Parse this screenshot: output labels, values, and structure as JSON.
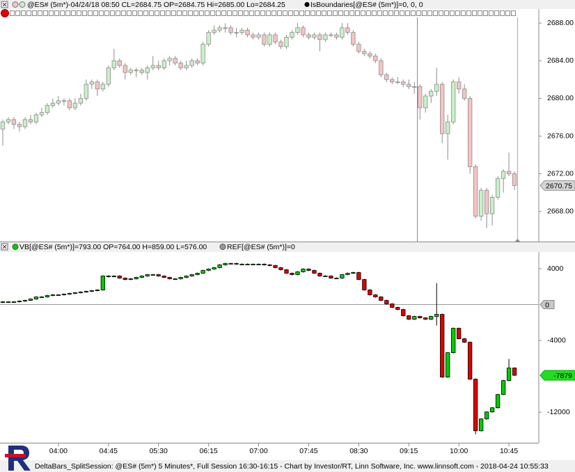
{
  "chart_data": [
    {
      "type": "candlestick",
      "header": "@ES# (5m*)-04/24/18 08:50 CL=2684.75 OP=2684.75 Hi=2685.00 Lo=2684.25",
      "indicator": "IsBoundaries[@ES# (5m*)]=0, 0, 0",
      "up_color": "#c8f0c8",
      "down_color": "#f4c4c4",
      "outline_color": "#8c8c8c",
      "ylim": [
        2664.8,
        2688.6
      ],
      "yticks": [
        {
          "value": 2668,
          "label": "2668.00"
        },
        {
          "value": 2672,
          "label": "2672.00"
        },
        {
          "value": 2676,
          "label": "2676.00"
        },
        {
          "value": 2680,
          "label": "2680.00"
        },
        {
          "value": 2684,
          "label": "2684.00"
        },
        {
          "value": 2688,
          "label": "2688.00"
        }
      ],
      "last_value": 2670.75,
      "open": [
        2676.75,
        2677.5,
        2677.75,
        2677.25,
        2677.0,
        2677.75,
        2677.5,
        2678.25,
        2678.5,
        2679.25,
        2679.5,
        2679.75,
        2679.75,
        2679.0,
        2679.5,
        2680.0,
        2681.5,
        2681.75,
        2681.0,
        2681.5,
        2683.25,
        2684.0,
        2683.5,
        2682.75,
        2683.0,
        2683.0,
        2682.75,
        2683.25,
        2683.5,
        2683.25,
        2684.0,
        2684.25,
        2683.75,
        2683.25,
        2683.5,
        2684.0,
        2683.75,
        2685.75,
        2687.0,
        2687.25,
        2687.5,
        2687.5,
        2687.0,
        2687.0,
        2687.25,
        2686.75,
        2686.5,
        2686.75,
        2685.75,
        2686.75,
        2686.0,
        2685.5,
        2686.5,
        2687.0,
        2687.5,
        2686.75,
        2686.5,
        2686.75,
        2686.25,
        2686.75,
        2686.75,
        2686.5,
        2687.5,
        2687.0,
        2685.75,
        2685.0,
        2684.75,
        2684.5,
        2684.0,
        2682.5,
        2682.0,
        2681.75,
        2681.75,
        2681.5,
        2681.25,
        2681.25,
        2679.0,
        2680.25,
        2680.75,
        2681.5,
        2676.25,
        2677.5,
        2681.75,
        2681.0,
        2680.0,
        2672.75,
        2667.5,
        2670.25,
        2667.75,
        2669.5,
        2671.5,
        2672.25,
        2672.0
      ],
      "high": [
        2677.75,
        2678.0,
        2678.0,
        2677.5,
        2678.0,
        2678.25,
        2678.5,
        2679.0,
        2679.5,
        2680.0,
        2680.25,
        2680.0,
        2680.0,
        2680.0,
        2680.5,
        2682.0,
        2682.0,
        2682.0,
        2681.75,
        2683.5,
        2685.25,
        2684.25,
        2683.75,
        2683.25,
        2683.25,
        2683.25,
        2683.5,
        2684.5,
        2684.0,
        2684.25,
        2684.5,
        2684.5,
        2684.0,
        2684.0,
        2684.25,
        2684.25,
        2686.0,
        2687.25,
        2687.75,
        2687.75,
        2688.0,
        2687.75,
        2687.5,
        2687.5,
        2687.5,
        2687.0,
        2687.0,
        2687.0,
        2687.0,
        2687.0,
        2686.25,
        2686.75,
        2687.25,
        2688.0,
        2687.75,
        2687.0,
        2687.0,
        2687.0,
        2687.0,
        2687.0,
        2687.0,
        2688.0,
        2688.0,
        2687.25,
        2686.0,
        2685.25,
        2685.0,
        2684.75,
        2684.25,
        2682.75,
        2682.25,
        2682.25,
        2682.0,
        2682.0,
        2681.75,
        2681.5,
        2680.5,
        2681.0,
        2683.25,
        2681.75,
        2678.25,
        2682.0,
        2682.25,
        2681.5,
        2680.25,
        2673.0,
        2670.5,
        2670.5,
        2669.75,
        2671.75,
        2672.5,
        2674.25,
        2672.25
      ],
      "low": [
        2675.0,
        2677.25,
        2676.75,
        2676.5,
        2676.75,
        2677.25,
        2677.25,
        2678.0,
        2678.25,
        2679.0,
        2679.25,
        2679.25,
        2678.75,
        2678.75,
        2679.25,
        2679.75,
        2681.0,
        2680.25,
        2680.75,
        2681.25,
        2683.0,
        2683.25,
        2682.0,
        2682.5,
        2682.25,
        2682.5,
        2682.0,
        2683.0,
        2683.0,
        2683.0,
        2683.5,
        2683.5,
        2683.0,
        2683.0,
        2683.25,
        2683.5,
        2683.5,
        2685.5,
        2686.75,
        2687.0,
        2687.0,
        2686.75,
        2686.5,
        2686.75,
        2686.5,
        2686.25,
        2686.25,
        2685.5,
        2685.5,
        2685.75,
        2685.25,
        2685.25,
        2686.25,
        2686.75,
        2686.5,
        2686.25,
        2686.25,
        2685.0,
        2686.0,
        2686.5,
        2686.25,
        2686.25,
        2686.75,
        2685.5,
        2684.75,
        2684.5,
        2684.25,
        2683.75,
        2682.25,
        2681.75,
        2681.5,
        2681.5,
        2681.25,
        2681.0,
        2680.5,
        2677.75,
        2678.5,
        2679.5,
        2680.25,
        2675.25,
        2673.5,
        2677.25,
        2680.5,
        2679.75,
        2672.0,
        2667.25,
        2667.0,
        2666.25,
        2666.5,
        2669.25,
        2670.0,
        2671.75,
        2670.25
      ],
      "close": [
        2677.5,
        2677.75,
        2677.25,
        2677.0,
        2677.75,
        2677.5,
        2678.25,
        2678.5,
        2679.25,
        2679.5,
        2679.75,
        2679.75,
        2679.0,
        2679.5,
        2680.0,
        2681.5,
        2681.75,
        2681.0,
        2681.5,
        2683.25,
        2684.0,
        2683.5,
        2682.75,
        2683.0,
        2683.0,
        2682.75,
        2683.25,
        2683.5,
        2683.25,
        2684.0,
        2684.25,
        2683.75,
        2683.25,
        2683.5,
        2684.0,
        2683.75,
        2685.75,
        2687.0,
        2687.25,
        2687.5,
        2687.5,
        2687.0,
        2687.0,
        2687.25,
        2686.75,
        2686.5,
        2686.75,
        2685.75,
        2686.75,
        2686.0,
        2685.5,
        2686.5,
        2687.0,
        2687.5,
        2686.75,
        2686.5,
        2686.75,
        2686.25,
        2686.75,
        2686.75,
        2686.5,
        2687.5,
        2687.0,
        2685.75,
        2685.0,
        2684.75,
        2684.5,
        2684.0,
        2682.5,
        2682.0,
        2681.75,
        2681.75,
        2681.5,
        2681.25,
        2681.25,
        2679.0,
        2680.25,
        2680.75,
        2681.5,
        2676.25,
        2677.5,
        2681.75,
        2681.0,
        2680.0,
        2672.75,
        2667.5,
        2670.25,
        2667.75,
        2669.5,
        2671.5,
        2672.25,
        2672.0,
        2670.75
      ]
    },
    {
      "type": "candlestick",
      "header": "VB[@ES# (5m*)]=793.00 OP=764.00 H=859.00 L=576.00",
      "indicator": "REF[@ES# (5m*)]=0",
      "up_color": "#00cc00",
      "down_color": "#dd0000",
      "outline_color": "#000000",
      "ylim": [
        -15400,
        5860
      ],
      "yticks": [
        -12000,
        -4000,
        4000
      ],
      "ref_value": 0,
      "last_value": -7879,
      "categories": [
        null,
        null,
        null,
        null,
        null,
        null,
        null,
        null,
        null,
        null,
        "04:00",
        null,
        null,
        null,
        null,
        null,
        null,
        null,
        null,
        "04:45",
        null,
        null,
        null,
        null,
        null,
        null,
        null,
        null,
        "05:30",
        null,
        null,
        null,
        null,
        null,
        null,
        null,
        null,
        "06:15",
        null,
        null,
        null,
        null,
        null,
        null,
        null,
        null,
        "07:00",
        null,
        null,
        null,
        null,
        null,
        null,
        null,
        null,
        "07:45",
        null,
        null,
        null,
        null,
        null,
        null,
        null,
        null,
        "08:30",
        null,
        null,
        null,
        null,
        null,
        null,
        null,
        null,
        "09:15",
        null,
        null,
        null,
        null,
        null,
        null,
        null,
        null,
        "10:00",
        null,
        null,
        null,
        null,
        null,
        null,
        null,
        null,
        "10:45",
        null
      ],
      "open": [
        233,
        311,
        311,
        311,
        389,
        466,
        622,
        855,
        855,
        1010,
        1088,
        1088,
        1166,
        1243,
        1321,
        1399,
        1476,
        1554,
        1632,
        3186,
        3108,
        3186,
        2953,
        2797,
        2875,
        3030,
        3186,
        3341,
        3341,
        3186,
        3030,
        2875,
        2875,
        3030,
        3186,
        3341,
        3497,
        3808,
        3963,
        4118,
        4429,
        4584,
        4584,
        4507,
        4507,
        4507,
        4507,
        4507,
        4429,
        4351,
        4118,
        3885,
        3497,
        3341,
        3652,
        3963,
        3808,
        3497,
        3186,
        3186,
        2953,
        2953,
        3341,
        3497,
        3574,
        2797,
        1632,
        1088,
        855,
        466,
        78,
        -311,
        -544,
        -1243,
        -1632,
        -1321,
        -1476,
        -1632,
        -1321,
        -1088,
        -8080,
        -5361,
        -2642,
        -3808,
        -4196,
        -8313,
        -14064,
        -12743,
        -11966,
        -11500,
        -10024,
        -8469,
        -7070
      ],
      "high": [
        389,
        389,
        389,
        466,
        544,
        700,
        933,
        933,
        1088,
        1166,
        1166,
        1243,
        1321,
        1399,
        1476,
        1554,
        1632,
        1710,
        3264,
        3264,
        3264,
        3264,
        3030,
        2953,
        3108,
        3264,
        3419,
        3419,
        3419,
        3264,
        3108,
        2953,
        3108,
        3264,
        3419,
        3574,
        3885,
        4041,
        4196,
        4507,
        4662,
        4662,
        4662,
        4584,
        4584,
        4584,
        4584,
        4584,
        4507,
        4429,
        4196,
        3963,
        3574,
        3730,
        4041,
        4041,
        3885,
        3574,
        3264,
        3264,
        3030,
        3419,
        3574,
        3652,
        3652,
        2875,
        1710,
        1166,
        933,
        544,
        155,
        -233,
        -466,
        -1166,
        -1243,
        -1243,
        -1399,
        -1243,
        2400,
        -1010,
        -5283,
        -2564,
        -2564,
        -3730,
        -4118,
        -8235,
        -12665,
        -11888,
        -11422,
        -9946,
        -8391,
        -6060,
        -6992
      ],
      "low": [
        155,
        233,
        233,
        233,
        311,
        389,
        544,
        777,
        777,
        933,
        1010,
        1010,
        1088,
        1166,
        1243,
        1321,
        1399,
        1476,
        1554,
        3030,
        3030,
        2875,
        2720,
        2720,
        2797,
        2953,
        3108,
        3264,
        3108,
        2953,
        2797,
        2797,
        2797,
        2953,
        3108,
        3264,
        3419,
        3730,
        3885,
        4041,
        4351,
        4507,
        4429,
        4429,
        4429,
        4429,
        4429,
        4351,
        4274,
        4041,
        3808,
        3419,
        3264,
        3264,
        3574,
        3730,
        3419,
        3108,
        3108,
        2875,
        2875,
        2875,
        3264,
        3419,
        2720,
        1554,
        1010,
        777,
        389,
        0,
        -389,
        -622,
        -1321,
        -1710,
        -1710,
        -1554,
        -1710,
        -1710,
        -2330,
        -8158,
        -8158,
        -5439,
        -3885,
        -4274,
        -8391,
        -14453,
        -14142,
        -12821,
        -12044,
        -11578,
        -10102,
        -8547,
        -7957
      ],
      "close": [
        311,
        311,
        311,
        389,
        466,
        622,
        855,
        855,
        1010,
        1088,
        1088,
        1166,
        1243,
        1321,
        1399,
        1476,
        1554,
        1632,
        3186,
        3108,
        3186,
        2953,
        2797,
        2875,
        3030,
        3186,
        3341,
        3341,
        3186,
        3030,
        2875,
        2875,
        3030,
        3186,
        3341,
        3497,
        3808,
        3963,
        4118,
        4429,
        4584,
        4584,
        4507,
        4507,
        4507,
        4507,
        4507,
        4429,
        4351,
        4118,
        3885,
        3497,
        3341,
        3652,
        3963,
        3808,
        3497,
        3186,
        3186,
        2953,
        2953,
        3341,
        3497,
        3574,
        2797,
        1632,
        1088,
        855,
        466,
        78,
        -311,
        -544,
        -1243,
        -1632,
        -1321,
        -1476,
        -1632,
        -1321,
        -1088,
        -8080,
        -5361,
        -2642,
        -3808,
        -4196,
        -8313,
        -14064,
        -12743,
        -11966,
        -11500,
        -10024,
        -8469,
        -7070,
        -7879
      ]
    }
  ],
  "footer": "DeltaBars_SplitSession: @ES# (5m*) 5 Minutes*, Full Session 16:30-16:15 - Chart by Investor/RT, Linn Software, Inc. www.linnsoft.com - 2018-04-24 10:55:33"
}
